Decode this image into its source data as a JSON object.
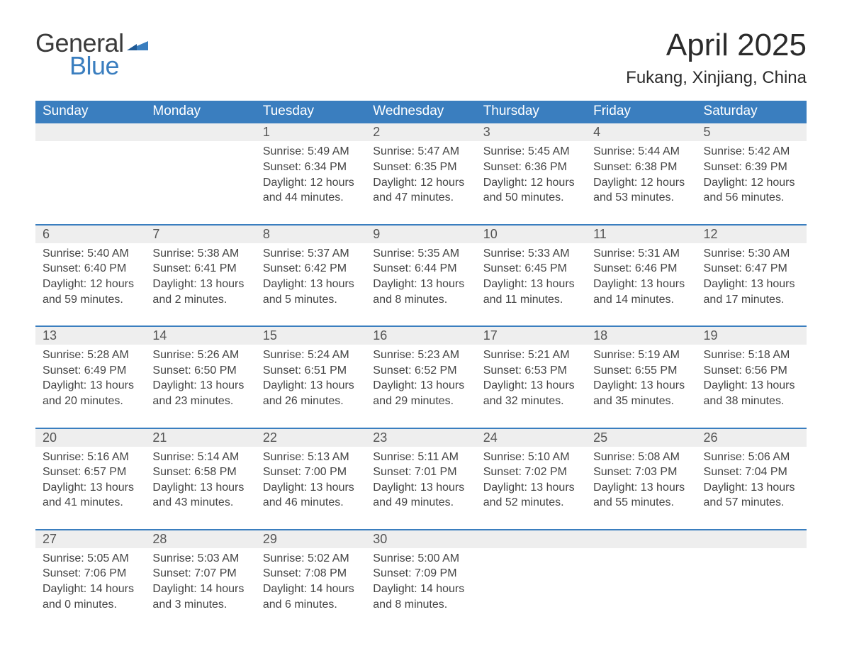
{
  "logo": {
    "general": "General",
    "blue": "Blue"
  },
  "title": "April 2025",
  "location": "Fukang, Xinjiang, China",
  "colors": {
    "header_bg": "#3a7ebf",
    "header_text": "#ffffff",
    "daynum_bg": "#eeeeee",
    "border_top": "#3a7ebf",
    "page_bg": "#ffffff",
    "text": "#444444",
    "logo_blue": "#3a7ebf"
  },
  "typography": {
    "title_fontsize": 44,
    "location_fontsize": 24,
    "header_fontsize": 19,
    "daynum_fontsize": 18,
    "body_fontsize": 16,
    "font_family": "Segoe UI"
  },
  "weekdays": [
    "Sunday",
    "Monday",
    "Tuesday",
    "Wednesday",
    "Thursday",
    "Friday",
    "Saturday"
  ],
  "weeks": [
    [
      null,
      null,
      {
        "n": "1",
        "sr": "Sunrise: 5:49 AM",
        "ss": "Sunset: 6:34 PM",
        "dl": "Daylight: 12 hours and 44 minutes."
      },
      {
        "n": "2",
        "sr": "Sunrise: 5:47 AM",
        "ss": "Sunset: 6:35 PM",
        "dl": "Daylight: 12 hours and 47 minutes."
      },
      {
        "n": "3",
        "sr": "Sunrise: 5:45 AM",
        "ss": "Sunset: 6:36 PM",
        "dl": "Daylight: 12 hours and 50 minutes."
      },
      {
        "n": "4",
        "sr": "Sunrise: 5:44 AM",
        "ss": "Sunset: 6:38 PM",
        "dl": "Daylight: 12 hours and 53 minutes."
      },
      {
        "n": "5",
        "sr": "Sunrise: 5:42 AM",
        "ss": "Sunset: 6:39 PM",
        "dl": "Daylight: 12 hours and 56 minutes."
      }
    ],
    [
      {
        "n": "6",
        "sr": "Sunrise: 5:40 AM",
        "ss": "Sunset: 6:40 PM",
        "dl": "Daylight: 12 hours and 59 minutes."
      },
      {
        "n": "7",
        "sr": "Sunrise: 5:38 AM",
        "ss": "Sunset: 6:41 PM",
        "dl": "Daylight: 13 hours and 2 minutes."
      },
      {
        "n": "8",
        "sr": "Sunrise: 5:37 AM",
        "ss": "Sunset: 6:42 PM",
        "dl": "Daylight: 13 hours and 5 minutes."
      },
      {
        "n": "9",
        "sr": "Sunrise: 5:35 AM",
        "ss": "Sunset: 6:44 PM",
        "dl": "Daylight: 13 hours and 8 minutes."
      },
      {
        "n": "10",
        "sr": "Sunrise: 5:33 AM",
        "ss": "Sunset: 6:45 PM",
        "dl": "Daylight: 13 hours and 11 minutes."
      },
      {
        "n": "11",
        "sr": "Sunrise: 5:31 AM",
        "ss": "Sunset: 6:46 PM",
        "dl": "Daylight: 13 hours and 14 minutes."
      },
      {
        "n": "12",
        "sr": "Sunrise: 5:30 AM",
        "ss": "Sunset: 6:47 PM",
        "dl": "Daylight: 13 hours and 17 minutes."
      }
    ],
    [
      {
        "n": "13",
        "sr": "Sunrise: 5:28 AM",
        "ss": "Sunset: 6:49 PM",
        "dl": "Daylight: 13 hours and 20 minutes."
      },
      {
        "n": "14",
        "sr": "Sunrise: 5:26 AM",
        "ss": "Sunset: 6:50 PM",
        "dl": "Daylight: 13 hours and 23 minutes."
      },
      {
        "n": "15",
        "sr": "Sunrise: 5:24 AM",
        "ss": "Sunset: 6:51 PM",
        "dl": "Daylight: 13 hours and 26 minutes."
      },
      {
        "n": "16",
        "sr": "Sunrise: 5:23 AM",
        "ss": "Sunset: 6:52 PM",
        "dl": "Daylight: 13 hours and 29 minutes."
      },
      {
        "n": "17",
        "sr": "Sunrise: 5:21 AM",
        "ss": "Sunset: 6:53 PM",
        "dl": "Daylight: 13 hours and 32 minutes."
      },
      {
        "n": "18",
        "sr": "Sunrise: 5:19 AM",
        "ss": "Sunset: 6:55 PM",
        "dl": "Daylight: 13 hours and 35 minutes."
      },
      {
        "n": "19",
        "sr": "Sunrise: 5:18 AM",
        "ss": "Sunset: 6:56 PM",
        "dl": "Daylight: 13 hours and 38 minutes."
      }
    ],
    [
      {
        "n": "20",
        "sr": "Sunrise: 5:16 AM",
        "ss": "Sunset: 6:57 PM",
        "dl": "Daylight: 13 hours and 41 minutes."
      },
      {
        "n": "21",
        "sr": "Sunrise: 5:14 AM",
        "ss": "Sunset: 6:58 PM",
        "dl": "Daylight: 13 hours and 43 minutes."
      },
      {
        "n": "22",
        "sr": "Sunrise: 5:13 AM",
        "ss": "Sunset: 7:00 PM",
        "dl": "Daylight: 13 hours and 46 minutes."
      },
      {
        "n": "23",
        "sr": "Sunrise: 5:11 AM",
        "ss": "Sunset: 7:01 PM",
        "dl": "Daylight: 13 hours and 49 minutes."
      },
      {
        "n": "24",
        "sr": "Sunrise: 5:10 AM",
        "ss": "Sunset: 7:02 PM",
        "dl": "Daylight: 13 hours and 52 minutes."
      },
      {
        "n": "25",
        "sr": "Sunrise: 5:08 AM",
        "ss": "Sunset: 7:03 PM",
        "dl": "Daylight: 13 hours and 55 minutes."
      },
      {
        "n": "26",
        "sr": "Sunrise: 5:06 AM",
        "ss": "Sunset: 7:04 PM",
        "dl": "Daylight: 13 hours and 57 minutes."
      }
    ],
    [
      {
        "n": "27",
        "sr": "Sunrise: 5:05 AM",
        "ss": "Sunset: 7:06 PM",
        "dl": "Daylight: 14 hours and 0 minutes."
      },
      {
        "n": "28",
        "sr": "Sunrise: 5:03 AM",
        "ss": "Sunset: 7:07 PM",
        "dl": "Daylight: 14 hours and 3 minutes."
      },
      {
        "n": "29",
        "sr": "Sunrise: 5:02 AM",
        "ss": "Sunset: 7:08 PM",
        "dl": "Daylight: 14 hours and 6 minutes."
      },
      {
        "n": "30",
        "sr": "Sunrise: 5:00 AM",
        "ss": "Sunset: 7:09 PM",
        "dl": "Daylight: 14 hours and 8 minutes."
      },
      null,
      null,
      null
    ]
  ]
}
